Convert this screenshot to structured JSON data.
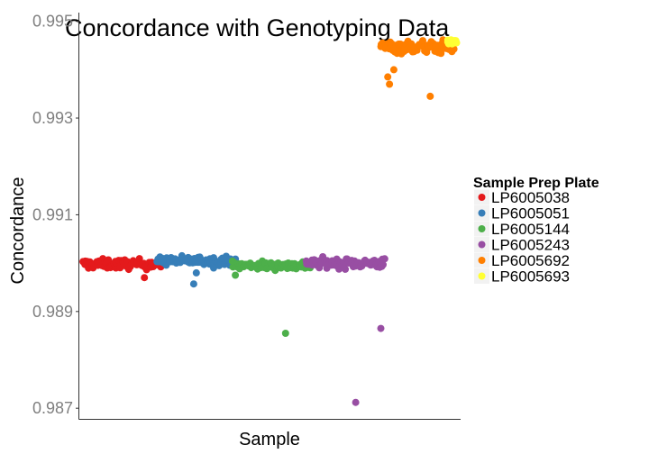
{
  "chart_data": {
    "type": "scatter",
    "title": "Concordance with Genotyping Data",
    "xlabel": "Sample",
    "ylabel": "Concordance",
    "ylim": [
      0.98678,
      0.99518
    ],
    "yticks": [
      "0.987",
      "0.989",
      "0.991",
      "0.993",
      "0.995"
    ],
    "x_ticks_shown": false,
    "grid": false,
    "legend_title": "Sample Prep Plate",
    "legend_position": "right",
    "series": [
      {
        "name": "LP6005038",
        "color": "#e41a1c",
        "x_range": [
          1,
          91
        ],
        "typical": 0.98998,
        "spread": 9e-05,
        "count": 90,
        "outliers": [
          [
            72,
            0.9897
          ]
        ]
      },
      {
        "name": "LP6005051",
        "color": "#377eb8",
        "x_range": [
          87,
          177
        ],
        "typical": 0.99005,
        "spread": 8e-05,
        "count": 90,
        "outliers": [
          [
            132,
            0.9898
          ],
          [
            129,
            0.98957
          ],
          [
            152,
            0.9899
          ],
          [
            120,
            0.99005
          ]
        ]
      },
      {
        "name": "LP6005144",
        "color": "#4daf4a",
        "x_range": [
          173,
          263
        ],
        "typical": 0.98995,
        "spread": 8e-05,
        "count": 90,
        "outliers": [
          [
            235,
            0.98855
          ],
          [
            177,
            0.98975
          ]
        ]
      },
      {
        "name": "LP6005243",
        "color": "#984ea3",
        "x_range": [
          259,
          349
        ],
        "typical": 0.99,
        "spread": 9e-05,
        "count": 90,
        "outliers": [
          [
            316,
            0.98712
          ],
          [
            345,
            0.98865
          ]
        ]
      },
      {
        "name": "LP6005692",
        "color": "#ff7f00",
        "x_range": [
          345,
          429
        ],
        "typical": 0.99447,
        "spread": 0.00012,
        "count": 90,
        "outliers": [
          [
            353,
            0.99385
          ],
          [
            355,
            0.9937
          ],
          [
            402,
            0.99345
          ],
          [
            360,
            0.994
          ]
        ]
      },
      {
        "name": "LP6005693",
        "color": "#ffff33",
        "x_range": [
          422,
          432
        ],
        "typical": 0.99457,
        "spread": 4e-05,
        "count": 12,
        "outliers": []
      }
    ]
  }
}
